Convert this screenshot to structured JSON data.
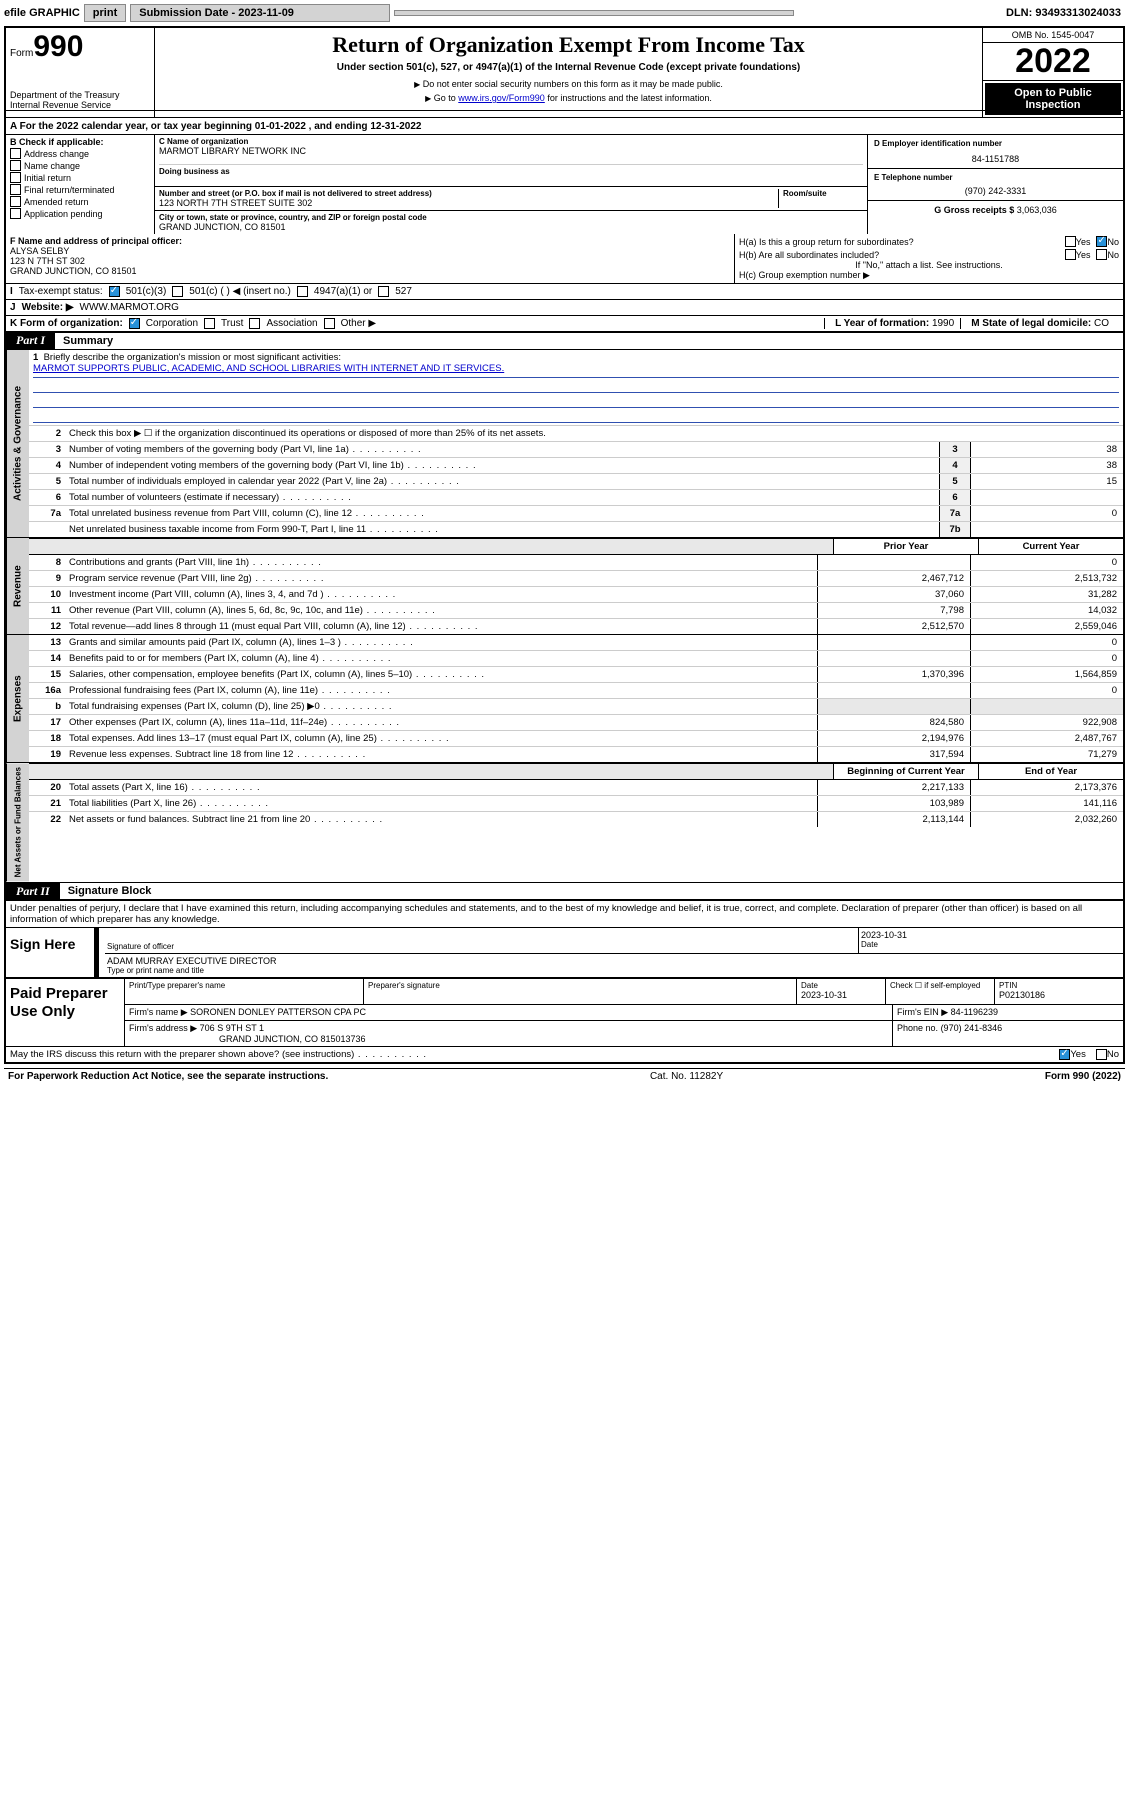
{
  "topbar": {
    "efile_label": "efile GRAPHIC",
    "print_btn": "print",
    "submission_label": "Submission Date - 2023-11-09",
    "dln": "DLN: 93493313024033"
  },
  "header": {
    "form_prefix": "Form",
    "form_number": "990",
    "dept": "Department of the Treasury",
    "irs": "Internal Revenue Service",
    "title": "Return of Organization Exempt From Income Tax",
    "subtitle": "Under section 501(c), 527, or 4947(a)(1) of the Internal Revenue Code (except private foundations)",
    "note1": "Do not enter social security numbers on this form as it may be made public.",
    "note2_prefix": "Go to ",
    "note2_link": "www.irs.gov/Form990",
    "note2_suffix": " for instructions and the latest information.",
    "omb": "OMB No. 1545-0047",
    "year": "2022",
    "open_public": "Open to Public Inspection"
  },
  "row_a": "A For the 2022 calendar year, or tax year beginning 01-01-2022    , and ending 12-31-2022",
  "col_b": {
    "label": "B Check if applicable:",
    "items": [
      "Address change",
      "Name change",
      "Initial return",
      "Final return/terminated",
      "Amended return",
      "Application pending"
    ]
  },
  "col_c": {
    "name_label": "C Name of organization",
    "name": "MARMOT LIBRARY NETWORK INC",
    "dba_label": "Doing business as",
    "addr_label": "Number and street (or P.O. box if mail is not delivered to street address)",
    "room_label": "Room/suite",
    "addr": "123 NORTH 7TH STREET SUITE 302",
    "city_label": "City or town, state or province, country, and ZIP or foreign postal code",
    "city": "GRAND JUNCTION, CO  81501"
  },
  "col_right": {
    "d_label": "D Employer identification number",
    "d_val": "84-1151788",
    "e_label": "E Telephone number",
    "e_val": "(970) 242-3331",
    "g_label": "G Gross receipts $",
    "g_val": "3,063,036"
  },
  "row_f": {
    "f_label": "F Name and address of principal officer:",
    "f_name": "ALYSA SELBY",
    "f_addr1": "123 N 7TH ST 302",
    "f_addr2": "GRAND JUNCTION, CO  81501",
    "ha": "H(a)  Is this a group return for subordinates?",
    "hb": "H(b)  Are all subordinates included?",
    "hb_note": "If \"No,\" attach a list. See instructions.",
    "hc": "H(c)  Group exemption number ▶",
    "yes": "Yes",
    "no": "No"
  },
  "row_i": {
    "label": "Tax-exempt status:",
    "opt1": "501(c)(3)",
    "opt2": "501(c) (  ) ◀ (insert no.)",
    "opt3": "4947(a)(1) or",
    "opt4": "527"
  },
  "row_j": {
    "label": "Website: ▶",
    "val": "WWW.MARMOT.ORG"
  },
  "row_k": {
    "label": "K Form of organization:",
    "opt1": "Corporation",
    "opt2": "Trust",
    "opt3": "Association",
    "opt4": "Other ▶",
    "l_label": "L Year of formation:",
    "l_val": "1990",
    "m_label": "M State of legal domicile:",
    "m_val": "CO"
  },
  "part1": {
    "part_label": "Part I",
    "part_title": "Summary"
  },
  "governance": {
    "tab": "Activities & Governance",
    "l1_text": "Briefly describe the organization's mission or most significant activities:",
    "l1_mission": "MARMOT SUPPORTS PUBLIC, ACADEMIC, AND SCHOOL LIBRARIES WITH INTERNET AND IT SERVICES.",
    "l2_text": "Check this box ▶ ☐  if the organization discontinued its operations or disposed of more than 25% of its net assets.",
    "l3_text": "Number of voting members of the governing body (Part VI, line 1a)",
    "l3_box": "3",
    "l3_val": "38",
    "l4_text": "Number of independent voting members of the governing body (Part VI, line 1b)",
    "l4_box": "4",
    "l4_val": "38",
    "l5_text": "Total number of individuals employed in calendar year 2022 (Part V, line 2a)",
    "l5_box": "5",
    "l5_val": "15",
    "l6_text": "Total number of volunteers (estimate if necessary)",
    "l6_box": "6",
    "l6_val": "",
    "l7a_text": "Total unrelated business revenue from Part VIII, column (C), line 12",
    "l7a_box": "7a",
    "l7a_val": "0",
    "l7b_text": "Net unrelated business taxable income from Form 990-T, Part I, line 11",
    "l7b_box": "7b",
    "l7b_val": ""
  },
  "col_headers": {
    "prior": "Prior Year",
    "current": "Current Year",
    "begin": "Beginning of Current Year",
    "end": "End of Year"
  },
  "revenue": {
    "tab": "Revenue",
    "lines": [
      {
        "n": "8",
        "t": "Contributions and grants (Part VIII, line 1h)",
        "p": "",
        "c": "0"
      },
      {
        "n": "9",
        "t": "Program service revenue (Part VIII, line 2g)",
        "p": "2,467,712",
        "c": "2,513,732"
      },
      {
        "n": "10",
        "t": "Investment income (Part VIII, column (A), lines 3, 4, and 7d )",
        "p": "37,060",
        "c": "31,282"
      },
      {
        "n": "11",
        "t": "Other revenue (Part VIII, column (A), lines 5, 6d, 8c, 9c, 10c, and 11e)",
        "p": "7,798",
        "c": "14,032"
      },
      {
        "n": "12",
        "t": "Total revenue—add lines 8 through 11 (must equal Part VIII, column (A), line 12)",
        "p": "2,512,570",
        "c": "2,559,046"
      }
    ]
  },
  "expenses": {
    "tab": "Expenses",
    "lines": [
      {
        "n": "13",
        "t": "Grants and similar amounts paid (Part IX, column (A), lines 1–3 )",
        "p": "",
        "c": "0"
      },
      {
        "n": "14",
        "t": "Benefits paid to or for members (Part IX, column (A), line 4)",
        "p": "",
        "c": "0"
      },
      {
        "n": "15",
        "t": "Salaries, other compensation, employee benefits (Part IX, column (A), lines 5–10)",
        "p": "1,370,396",
        "c": "1,564,859"
      },
      {
        "n": "16a",
        "t": "Professional fundraising fees (Part IX, column (A), line 11e)",
        "p": "",
        "c": "0"
      },
      {
        "n": "b",
        "t": "Total fundraising expenses (Part IX, column (D), line 25) ▶0",
        "p": "shade",
        "c": "shade"
      },
      {
        "n": "17",
        "t": "Other expenses (Part IX, column (A), lines 11a–11d, 11f–24e)",
        "p": "824,580",
        "c": "922,908"
      },
      {
        "n": "18",
        "t": "Total expenses. Add lines 13–17 (must equal Part IX, column (A), line 25)",
        "p": "2,194,976",
        "c": "2,487,767"
      },
      {
        "n": "19",
        "t": "Revenue less expenses. Subtract line 18 from line 12",
        "p": "317,594",
        "c": "71,279"
      }
    ]
  },
  "netassets": {
    "tab": "Net Assets or Fund Balances",
    "lines": [
      {
        "n": "20",
        "t": "Total assets (Part X, line 16)",
        "p": "2,217,133",
        "c": "2,173,376"
      },
      {
        "n": "21",
        "t": "Total liabilities (Part X, line 26)",
        "p": "103,989",
        "c": "141,116"
      },
      {
        "n": "22",
        "t": "Net assets or fund balances. Subtract line 21 from line 20",
        "p": "2,113,144",
        "c": "2,032,260"
      }
    ]
  },
  "part2": {
    "part_label": "Part II",
    "part_title": "Signature Block"
  },
  "sig": {
    "preamble": "Under penalties of perjury, I declare that I have examined this return, including accompanying schedules and statements, and to the best of my knowledge and belief, it is true, correct, and complete. Declaration of preparer (other than officer) is based on all information of which preparer has any knowledge.",
    "sign_here": "Sign Here",
    "sig_of_officer": "Signature of officer",
    "date_label": "Date",
    "date_val": "2023-10-31",
    "name_title": "ADAM MURRAY EXECUTIVE DIRECTOR",
    "type_print": "Type or print name and title"
  },
  "paid": {
    "label": "Paid Preparer Use Only",
    "h_print": "Print/Type preparer's name",
    "h_sig": "Preparer's signature",
    "h_date": "Date",
    "date_val": "2023-10-31",
    "h_check": "Check ☐ if self-employed",
    "h_ptin": "PTIN",
    "ptin_val": "P02130186",
    "firm_name_label": "Firm's name    ▶",
    "firm_name": "SORONEN DONLEY PATTERSON CPA PC",
    "firm_ein_label": "Firm's EIN ▶",
    "firm_ein": "84-1196239",
    "firm_addr_label": "Firm's address ▶",
    "firm_addr1": "706 S 9TH ST 1",
    "firm_addr2": "GRAND JUNCTION, CO  815013736",
    "phone_label": "Phone no.",
    "phone": "(970) 241-8346"
  },
  "footer": {
    "discuss": "May the IRS discuss this return with the preparer shown above? (see instructions)",
    "yes": "Yes",
    "no": "No",
    "pra": "For Paperwork Reduction Act Notice, see the separate instructions.",
    "cat": "Cat. No. 11282Y",
    "form": "Form 990 (2022)"
  }
}
